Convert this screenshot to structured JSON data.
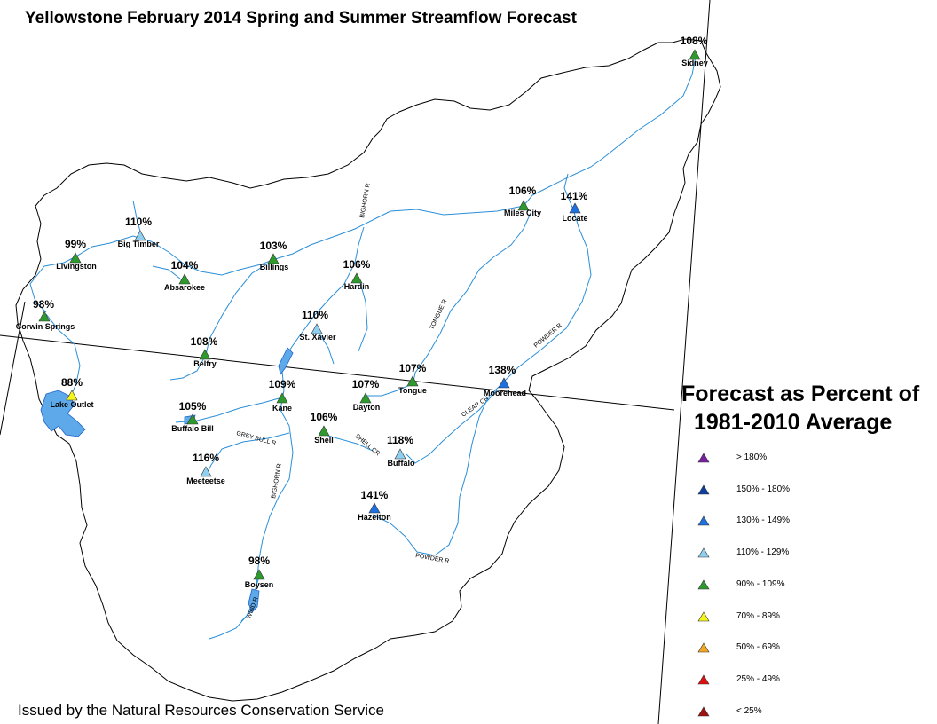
{
  "title": "Yellowstone February 2014 Spring and Summer Streamflow Forecast",
  "footer": "Issued by the Natural Resources Conservation Service",
  "legend": {
    "title_line1": "Forecast as Percent of",
    "title_line2": "1981-2010 Average",
    "items": [
      {
        "label": "> 180%",
        "color": "#7b1fa2"
      },
      {
        "label": "150% - 180%",
        "color": "#0d3fa0"
      },
      {
        "label": "130% - 149%",
        "color": "#1e6fe0"
      },
      {
        "label": "110% - 129%",
        "color": "#8fd0f0"
      },
      {
        "label": "90% - 109%",
        "color": "#2e9a2e"
      },
      {
        "label": "70% - 89%",
        "color": "#f5f51a"
      },
      {
        "label": "50% - 69%",
        "color": "#f5a623"
      },
      {
        "label": "25% - 49%",
        "color": "#e01010"
      },
      {
        "label": "< 25%",
        "color": "#a01010"
      }
    ]
  },
  "stations": [
    {
      "name": "Sidney",
      "pct": "108%"
    },
    {
      "name": "Miles City",
      "pct": "106%"
    },
    {
      "name": "Locate",
      "pct": "141%"
    },
    {
      "name": "Big Timber",
      "pct": "110%"
    },
    {
      "name": "Livingston",
      "pct": "99%"
    },
    {
      "name": "Billings",
      "pct": "103%"
    },
    {
      "name": "Absarokee",
      "pct": "104%"
    },
    {
      "name": "Hardin",
      "pct": "106%"
    },
    {
      "name": "Corwin Springs",
      "pct": "98%"
    },
    {
      "name": "St. Xavier",
      "pct": "110%"
    },
    {
      "name": "Belfry",
      "pct": "108%"
    },
    {
      "name": "Tongue",
      "pct": "107%"
    },
    {
      "name": "Moorehead",
      "pct": "138%"
    },
    {
      "name": "Lake Outlet",
      "pct": "88%"
    },
    {
      "name": "Kane",
      "pct": "109%"
    },
    {
      "name": "Dayton",
      "pct": "107%"
    },
    {
      "name": "Buffalo Bill",
      "pct": "105%"
    },
    {
      "name": "Shell",
      "pct": "106%"
    },
    {
      "name": "Buffalo",
      "pct": "118%"
    },
    {
      "name": "Meeteetse",
      "pct": "116%"
    },
    {
      "name": "Hazelton",
      "pct": "141%"
    },
    {
      "name": "Boysen",
      "pct": "98%"
    }
  ],
  "river_labels": [
    "BIGHORN R",
    "TONGUE R",
    "POWDER R",
    "CLEAR CR",
    "SHELL CR",
    "GREY BULL R",
    "BIGHORN R",
    "POWDER R",
    "WIND R"
  ]
}
